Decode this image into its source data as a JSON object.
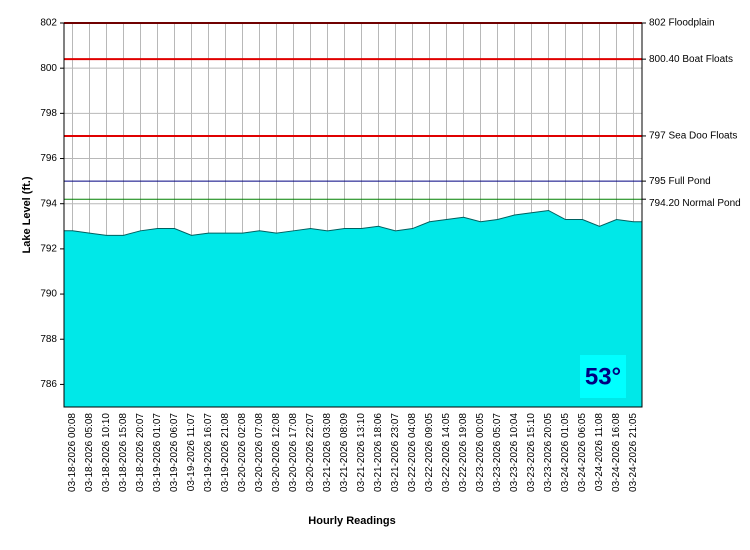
{
  "chart_data": {
    "type": "area",
    "y_label": "Lake Level (ft.)",
    "x_label": "Hourly Readings",
    "categories": [
      "03-18-2026 00:08",
      "03-18-2026 05:08",
      "03-18-2026 10:10",
      "03-18-2026 15:08",
      "03-18-2026 20:07",
      "03-19-2026 01:07",
      "03-19-2026 06:07",
      "03-19-2026 11:07",
      "03-19-2026 16:07",
      "03-19-2026 21:08",
      "03-20-2026 02:08",
      "03-20-2026 07:08",
      "03-20-2026 12:08",
      "03-20-2026 17:08",
      "03-20-2026 22:07",
      "03-21-2026 03:08",
      "03-21-2026 08:09",
      "03-21-2026 13:10",
      "03-21-2026 18:06",
      "03-21-2026 23:07",
      "03-22-2026 04:08",
      "03-22-2026 09:05",
      "03-22-2026 14:05",
      "03-22-2026 19:08",
      "03-23-2026 00:05",
      "03-23-2026 05:07",
      "03-23-2026 10:04",
      "03-23-2026 15:10",
      "03-23-2026 20:05",
      "03-24-2026 01:05",
      "03-24-2026 06:05",
      "03-24-2026 11:08",
      "03-24-2026 16:08",
      "03-24-2026 21:05"
    ],
    "values": [
      792.8,
      792.7,
      792.6,
      792.6,
      792.8,
      792.9,
      792.9,
      792.6,
      792.7,
      792.7,
      792.7,
      792.8,
      792.7,
      792.8,
      792.9,
      792.8,
      792.9,
      792.9,
      793.0,
      792.8,
      792.9,
      793.2,
      793.3,
      793.4,
      793.2,
      793.3,
      793.5,
      793.6,
      793.7,
      793.3,
      793.3,
      793.0,
      793.3,
      793.2
    ],
    "color": "#00e8e8",
    "ylim": [
      785,
      802
    ],
    "yticks": [
      786,
      788,
      790,
      792,
      794,
      796,
      798,
      800,
      802
    ],
    "grid": true,
    "reference_lines": [
      {
        "value": 802,
        "label": "802 Floodplain",
        "color": "#e00000"
      },
      {
        "value": 800.4,
        "label": "800.40 Boat Floats",
        "color": "#e00000"
      },
      {
        "value": 797,
        "label": "797 Sea Doo Floats",
        "color": "#e00000"
      },
      {
        "value": 795,
        "label": "795 Full Pond",
        "color": "#000080"
      },
      {
        "value": 794.2,
        "label": "794.20 Normal Pond",
        "color": "#008000"
      }
    ],
    "badge": "53°"
  }
}
